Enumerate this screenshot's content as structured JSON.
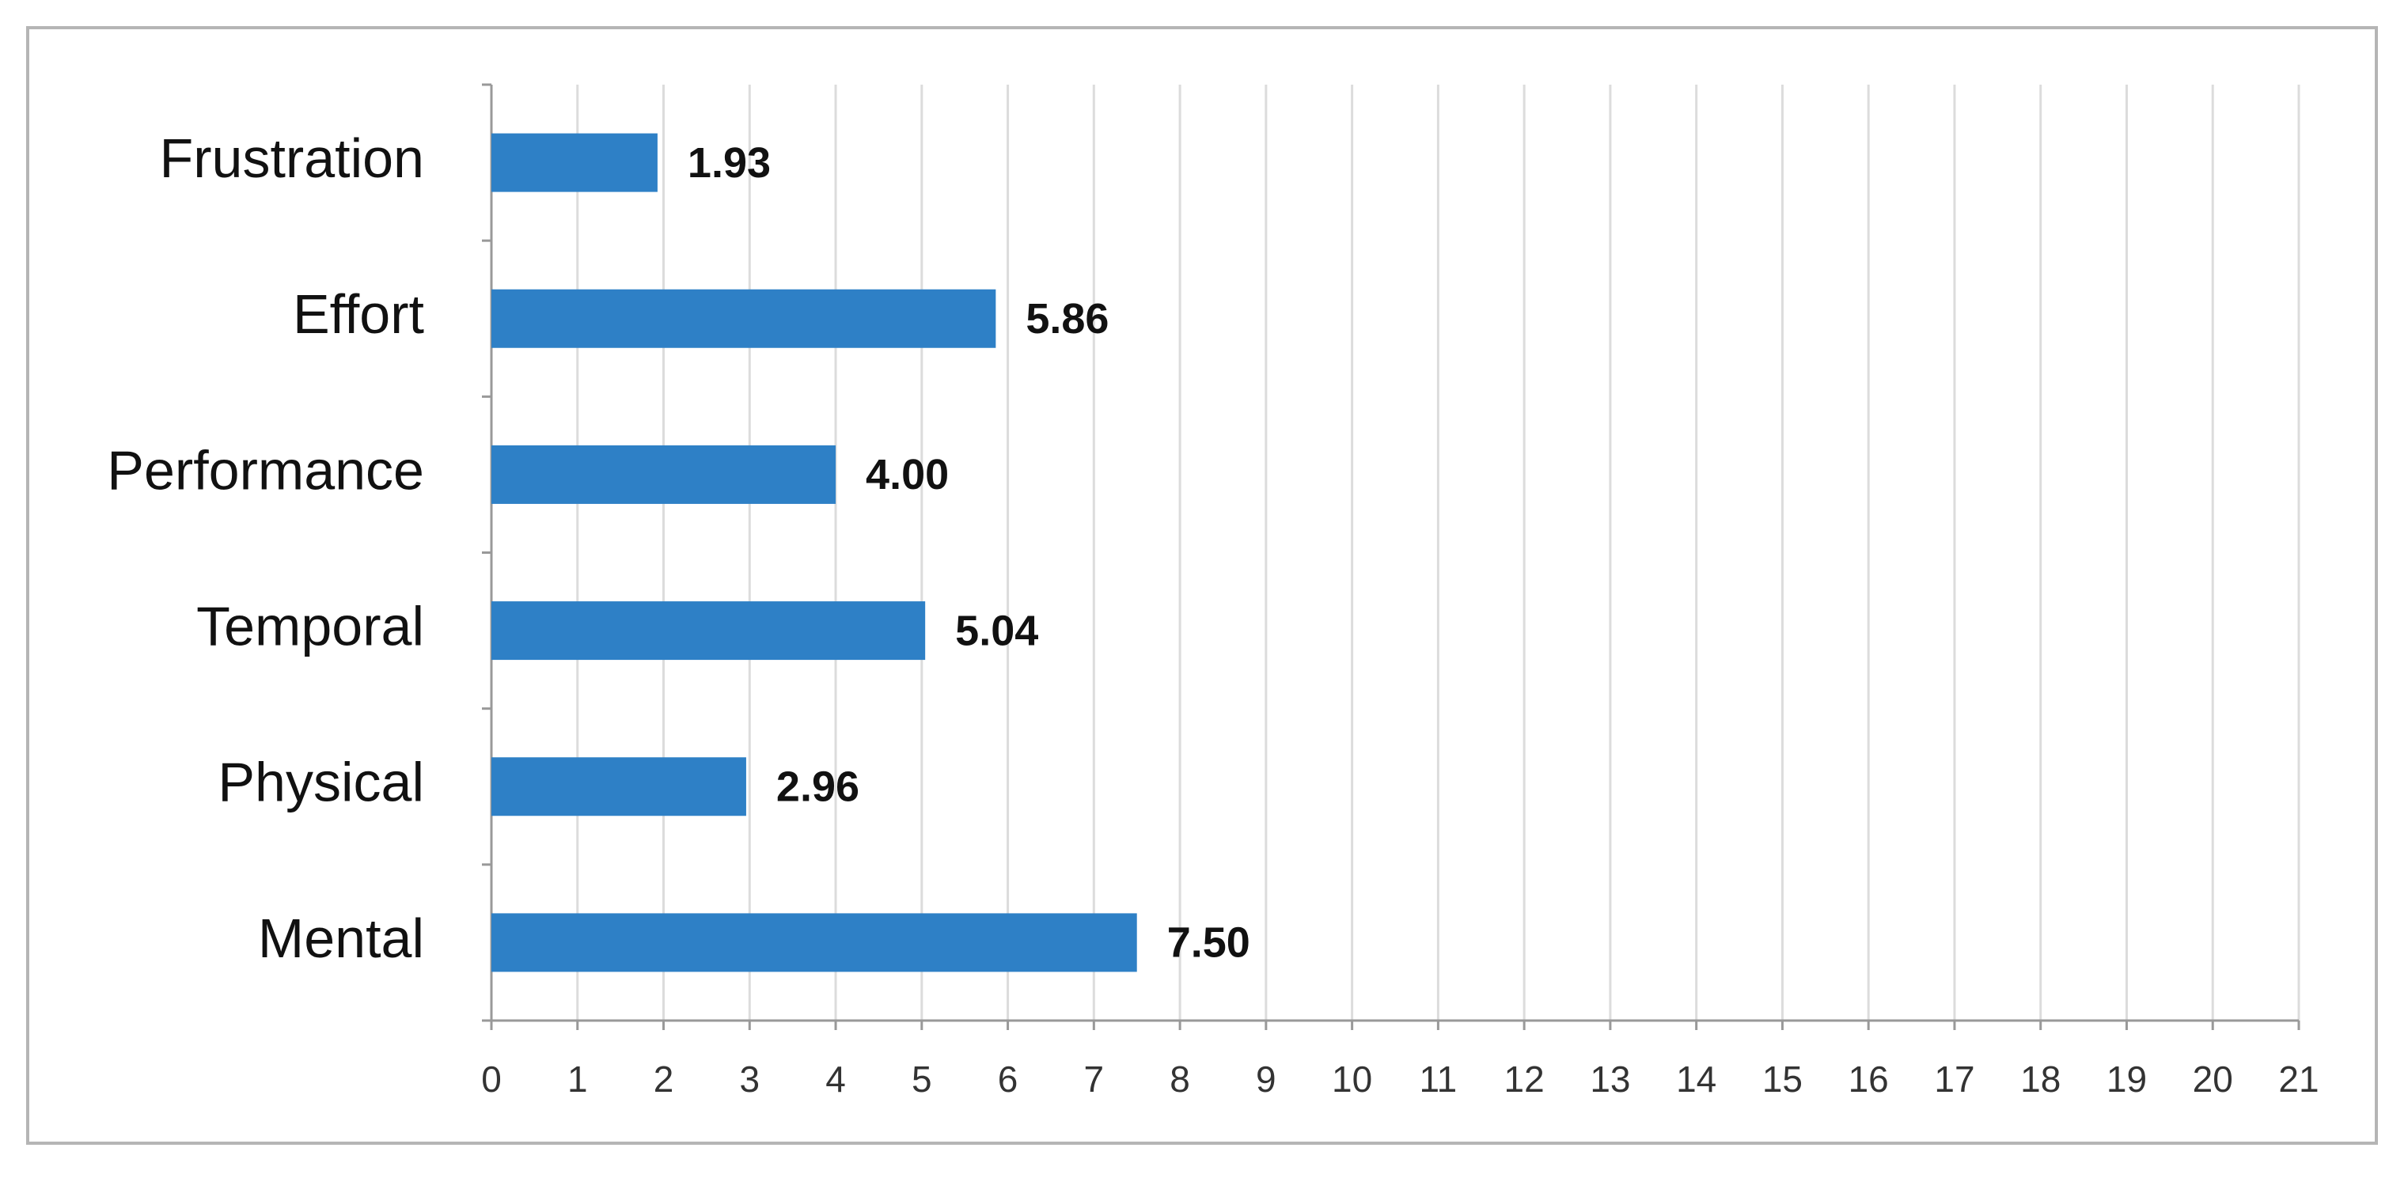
{
  "chart_data": {
    "type": "hbar",
    "categories": [
      "Mental",
      "Physical",
      "Temporal",
      "Performance",
      "Effort",
      "Frustration"
    ],
    "values": [
      7.5,
      2.96,
      5.04,
      4.0,
      5.86,
      1.93
    ],
    "value_labels": [
      "7.50",
      "2.96",
      "5.04",
      "4.00",
      "5.86",
      "1.93"
    ],
    "color": "#2e80c6",
    "xlim": [
      0,
      21
    ],
    "xticks": [
      0,
      1,
      2,
      3,
      4,
      5,
      6,
      7,
      8,
      9,
      10,
      11,
      12,
      13,
      14,
      15,
      16,
      17,
      18,
      19,
      20,
      21
    ],
    "grid": true
  }
}
